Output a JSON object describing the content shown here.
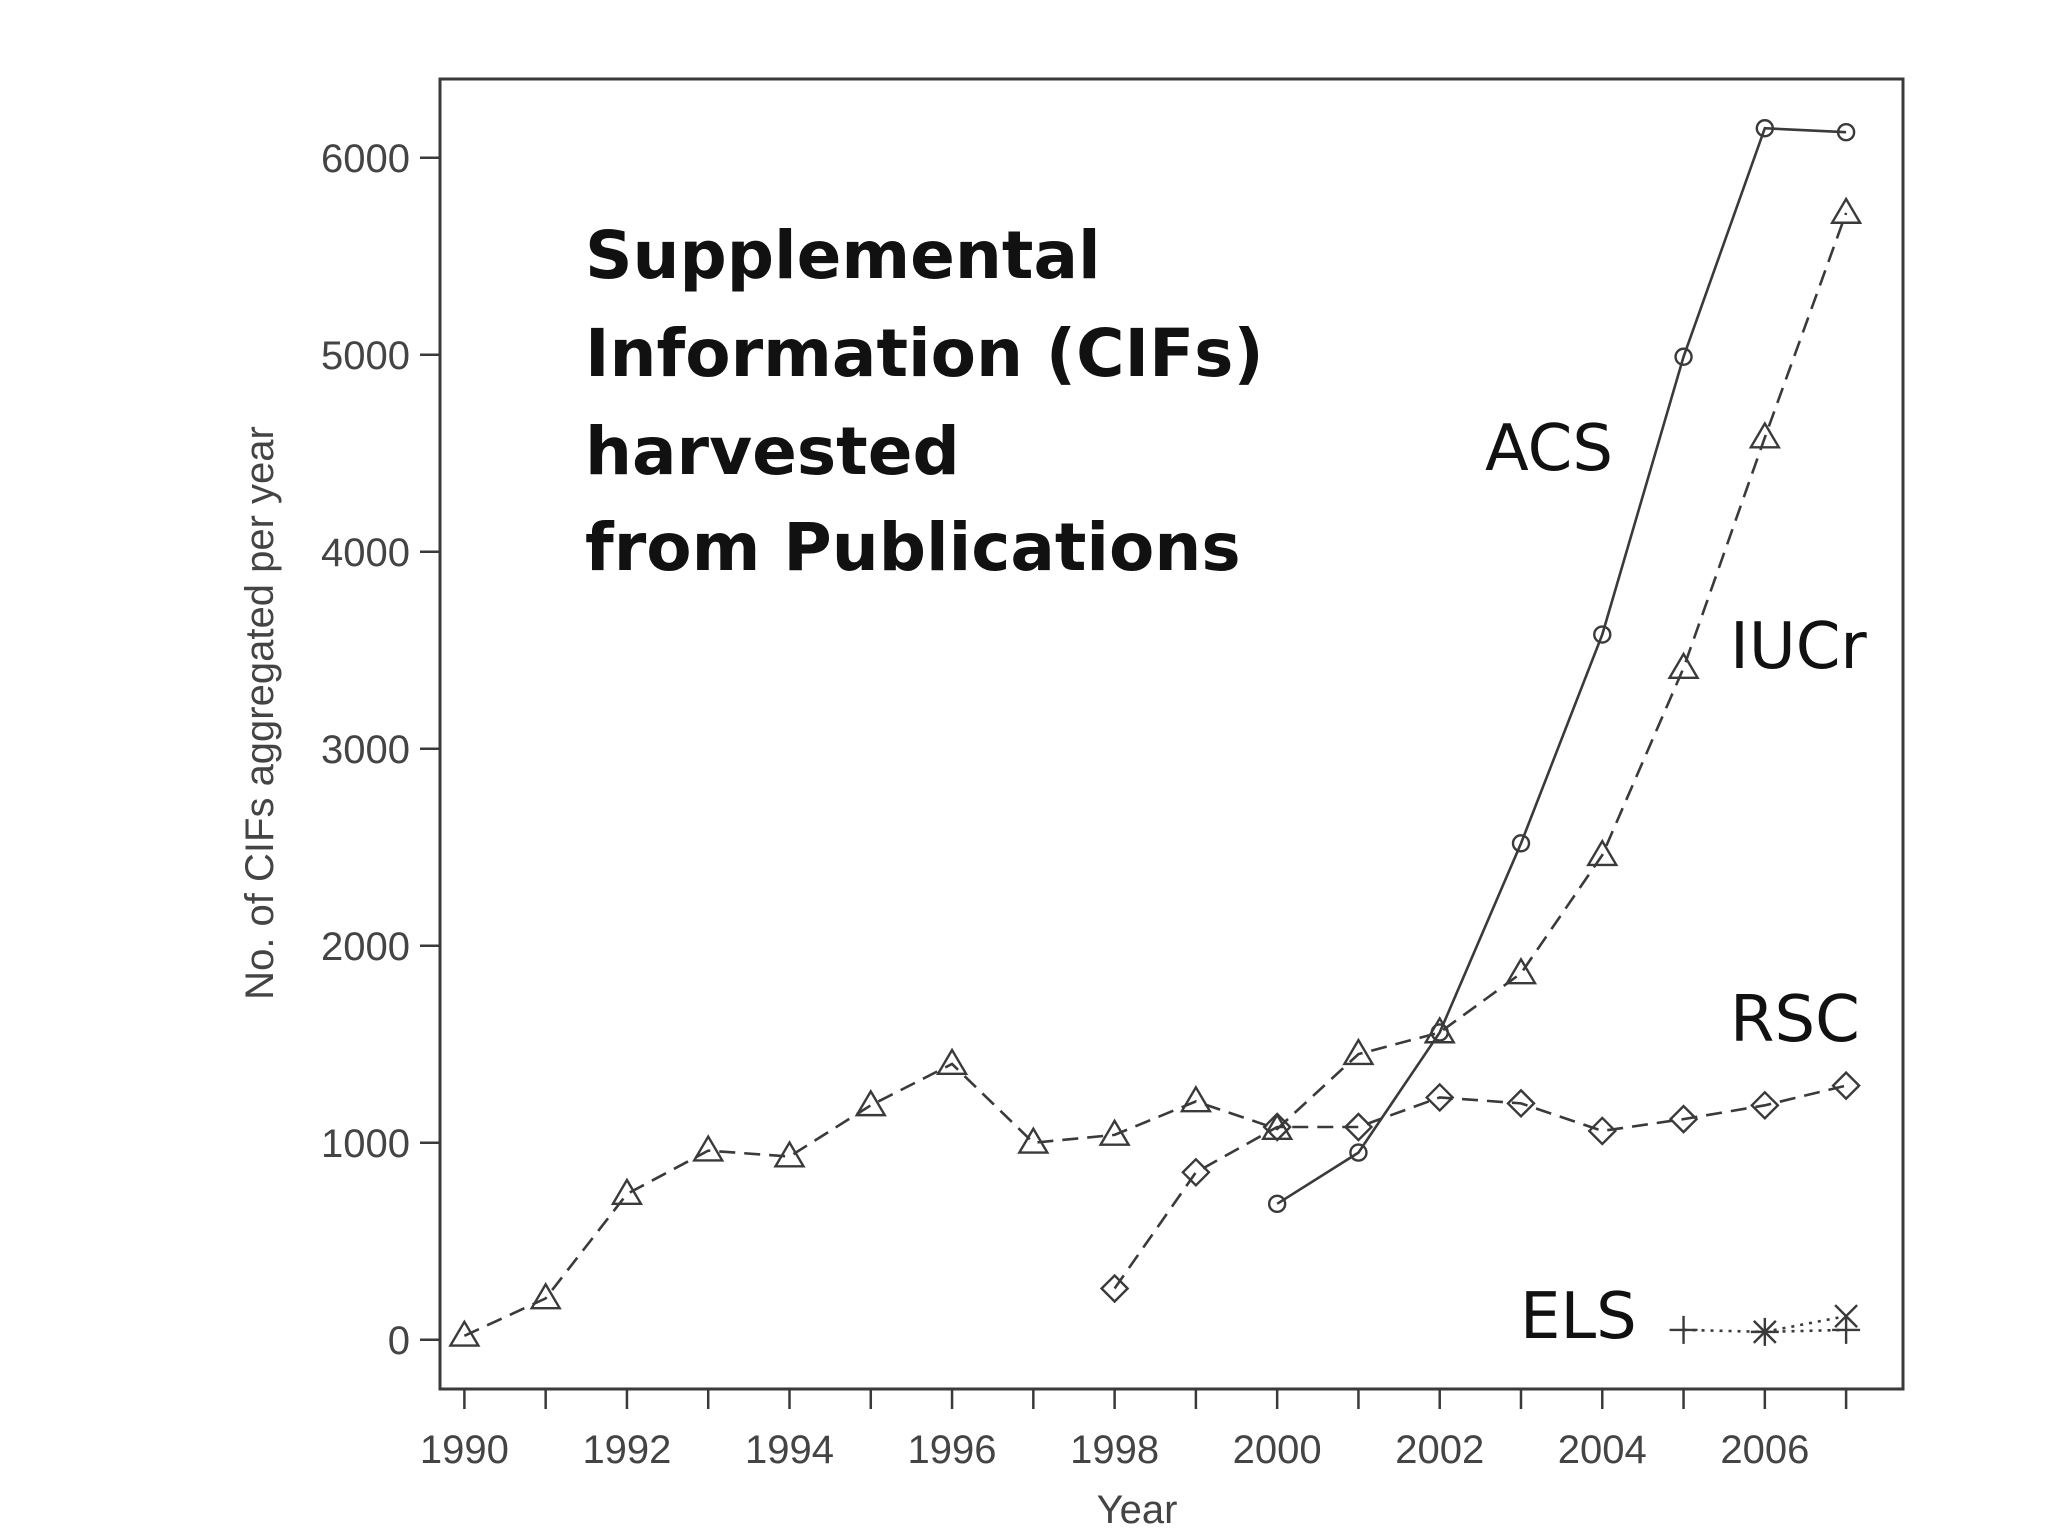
{
  "chart_data": {
    "type": "line",
    "xlabel": "Year",
    "ylabel": "No. of CIFs aggregated per year",
    "xlim": [
      1989.7,
      2007.7
    ],
    "ylim": [
      -250,
      6400
    ],
    "x_ticks": [
      1990,
      1991,
      1992,
      1993,
      1994,
      1995,
      1996,
      1997,
      1998,
      1999,
      2000,
      2001,
      2002,
      2003,
      2004,
      2005,
      2006,
      2007
    ],
    "x_tick_labels": [
      "1990",
      "1992",
      "1994",
      "1996",
      "1998",
      "2000",
      "2002",
      "2004",
      "2006"
    ],
    "x_tick_label_values": [
      1990,
      1992,
      1994,
      1996,
      1998,
      2000,
      2002,
      2004,
      2006
    ],
    "y_ticks": [
      0,
      1000,
      2000,
      3000,
      4000,
      5000,
      6000
    ],
    "y_tick_labels": [
      "0",
      "1000",
      "2000",
      "3000",
      "4000",
      "5000",
      "6000"
    ],
    "grid": false,
    "annotation": [
      "Supplemental",
      "Information (CIFs)",
      "harvested",
      "from Publications"
    ],
    "series": [
      {
        "name": "ACS",
        "marker": "circle",
        "line_style": "solid",
        "x": [
          2000,
          2001,
          2002,
          2003,
          2004,
          2005,
          2006,
          2007
        ],
        "values": [
          690,
          950,
          1560,
          2520,
          3580,
          4990,
          6150,
          6130
        ]
      },
      {
        "name": "IUCr",
        "marker": "triangle",
        "line_style": "dashed",
        "x": [
          1990,
          1991,
          1992,
          1993,
          1994,
          1995,
          1996,
          1997,
          1998,
          1999,
          2000,
          2001,
          2002,
          2003,
          2004,
          2005,
          2006,
          2007
        ],
        "values": [
          20,
          210,
          740,
          960,
          930,
          1190,
          1400,
          1000,
          1040,
          1210,
          1070,
          1450,
          1560,
          1860,
          2460,
          3410,
          4580,
          5720
        ]
      },
      {
        "name": "RSC",
        "marker": "diamond",
        "line_style": "dashed",
        "x": [
          1998,
          1999,
          2000,
          2001,
          2002,
          2003,
          2004,
          2005,
          2006,
          2007
        ],
        "values": [
          260,
          850,
          1080,
          1080,
          1230,
          1200,
          1060,
          1120,
          1190,
          1290
        ]
      },
      {
        "name": "ELS",
        "marker": "plus",
        "line_style": "dotted",
        "x": [
          2005,
          2006,
          2007
        ],
        "values": [
          50,
          40,
          50
        ]
      },
      {
        "name": "",
        "marker": "cross",
        "line_style": "dotted",
        "x": [
          2006,
          2007
        ],
        "values": [
          40,
          120
        ]
      }
    ],
    "series_labels": [
      {
        "text": "ACS",
        "series": "ACS"
      },
      {
        "text": "IUCr",
        "series": "IUCr"
      },
      {
        "text": "RSC",
        "series": "RSC"
      },
      {
        "text": "ELS",
        "series": "ELS"
      }
    ]
  }
}
